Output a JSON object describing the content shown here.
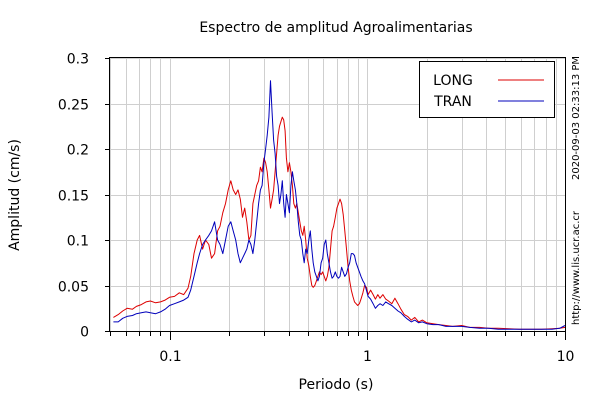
{
  "chart_data": {
    "type": "line",
    "title": "Espectro de amplitud Agroalimentarias",
    "xlabel": "Periodo (s)",
    "ylabel": "Amplitud (cm/s)",
    "x_scale": "log",
    "xlim": [
      0.05,
      10
    ],
    "ylim": [
      0,
      0.3
    ],
    "grid": true,
    "legend_position": "top-right",
    "x_ticks": [
      {
        "value": 0.1,
        "label": "0.1"
      },
      {
        "value": 1,
        "label": "1"
      },
      {
        "value": 10,
        "label": "10"
      }
    ],
    "y_ticks": [
      {
        "value": 0,
        "label": "0"
      },
      {
        "value": 0.05,
        "label": "0.05"
      },
      {
        "value": 0.1,
        "label": "0.1"
      },
      {
        "value": 0.15,
        "label": "0.15"
      },
      {
        "value": 0.2,
        "label": "0.2"
      },
      {
        "value": 0.25,
        "label": "0.25"
      },
      {
        "value": 0.3,
        "label": "0.3"
      }
    ],
    "series": [
      {
        "name": "LONG",
        "color": "#dd0000",
        "points": [
          [
            0.052,
            0.015
          ],
          [
            0.055,
            0.018
          ],
          [
            0.058,
            0.022
          ],
          [
            0.061,
            0.025
          ],
          [
            0.065,
            0.024
          ],
          [
            0.068,
            0.027
          ],
          [
            0.072,
            0.029
          ],
          [
            0.076,
            0.032
          ],
          [
            0.08,
            0.033
          ],
          [
            0.085,
            0.031
          ],
          [
            0.09,
            0.032
          ],
          [
            0.095,
            0.034
          ],
          [
            0.1,
            0.037
          ],
          [
            0.106,
            0.038
          ],
          [
            0.112,
            0.042
          ],
          [
            0.118,
            0.04
          ],
          [
            0.124,
            0.047
          ],
          [
            0.128,
            0.06
          ],
          [
            0.133,
            0.085
          ],
          [
            0.138,
            0.1
          ],
          [
            0.142,
            0.105
          ],
          [
            0.147,
            0.09
          ],
          [
            0.152,
            0.1
          ],
          [
            0.158,
            0.095
          ],
          [
            0.163,
            0.08
          ],
          [
            0.169,
            0.085
          ],
          [
            0.175,
            0.11
          ],
          [
            0.18,
            0.115
          ],
          [
            0.186,
            0.13
          ],
          [
            0.192,
            0.14
          ],
          [
            0.198,
            0.155
          ],
          [
            0.204,
            0.165
          ],
          [
            0.21,
            0.155
          ],
          [
            0.216,
            0.15
          ],
          [
            0.222,
            0.155
          ],
          [
            0.228,
            0.145
          ],
          [
            0.234,
            0.125
          ],
          [
            0.24,
            0.135
          ],
          [
            0.246,
            0.12
          ],
          [
            0.252,
            0.1
          ],
          [
            0.258,
            0.105
          ],
          [
            0.264,
            0.14
          ],
          [
            0.27,
            0.15
          ],
          [
            0.276,
            0.16
          ],
          [
            0.282,
            0.165
          ],
          [
            0.288,
            0.18
          ],
          [
            0.294,
            0.175
          ],
          [
            0.3,
            0.19
          ],
          [
            0.306,
            0.185
          ],
          [
            0.312,
            0.175
          ],
          [
            0.318,
            0.155
          ],
          [
            0.324,
            0.135
          ],
          [
            0.33,
            0.145
          ],
          [
            0.336,
            0.155
          ],
          [
            0.342,
            0.175
          ],
          [
            0.348,
            0.195
          ],
          [
            0.354,
            0.215
          ],
          [
            0.36,
            0.225
          ],
          [
            0.366,
            0.23
          ],
          [
            0.372,
            0.235
          ],
          [
            0.378,
            0.232
          ],
          [
            0.384,
            0.22
          ],
          [
            0.39,
            0.19
          ],
          [
            0.397,
            0.175
          ],
          [
            0.404,
            0.185
          ],
          [
            0.411,
            0.175
          ],
          [
            0.418,
            0.16
          ],
          [
            0.425,
            0.14
          ],
          [
            0.433,
            0.135
          ],
          [
            0.44,
            0.14
          ],
          [
            0.448,
            0.13
          ],
          [
            0.456,
            0.12
          ],
          [
            0.464,
            0.11
          ],
          [
            0.472,
            0.105
          ],
          [
            0.48,
            0.115
          ],
          [
            0.488,
            0.1
          ],
          [
            0.497,
            0.08
          ],
          [
            0.506,
            0.072
          ],
          [
            0.515,
            0.06
          ],
          [
            0.524,
            0.05
          ],
          [
            0.533,
            0.048
          ],
          [
            0.543,
            0.05
          ],
          [
            0.553,
            0.055
          ],
          [
            0.563,
            0.06
          ],
          [
            0.573,
            0.065
          ],
          [
            0.584,
            0.062
          ],
          [
            0.595,
            0.065
          ],
          [
            0.606,
            0.06
          ],
          [
            0.617,
            0.055
          ],
          [
            0.628,
            0.06
          ],
          [
            0.64,
            0.07
          ],
          [
            0.652,
            0.09
          ],
          [
            0.664,
            0.11
          ],
          [
            0.676,
            0.115
          ],
          [
            0.689,
            0.125
          ],
          [
            0.702,
            0.135
          ],
          [
            0.715,
            0.14
          ],
          [
            0.728,
            0.145
          ],
          [
            0.742,
            0.14
          ],
          [
            0.756,
            0.128
          ],
          [
            0.77,
            0.11
          ],
          [
            0.785,
            0.09
          ],
          [
            0.8,
            0.07
          ],
          [
            0.815,
            0.055
          ],
          [
            0.83,
            0.045
          ],
          [
            0.846,
            0.038
          ],
          [
            0.862,
            0.032
          ],
          [
            0.878,
            0.03
          ],
          [
            0.895,
            0.028
          ],
          [
            0.912,
            0.03
          ],
          [
            0.93,
            0.035
          ],
          [
            0.95,
            0.042
          ],
          [
            0.97,
            0.05
          ],
          [
            0.99,
            0.048
          ],
          [
            1.01,
            0.04
          ],
          [
            1.04,
            0.045
          ],
          [
            1.07,
            0.04
          ],
          [
            1.1,
            0.035
          ],
          [
            1.13,
            0.04
          ],
          [
            1.16,
            0.036
          ],
          [
            1.2,
            0.04
          ],
          [
            1.24,
            0.035
          ],
          [
            1.28,
            0.033
          ],
          [
            1.33,
            0.03
          ],
          [
            1.38,
            0.036
          ],
          [
            1.43,
            0.03
          ],
          [
            1.48,
            0.024
          ],
          [
            1.54,
            0.018
          ],
          [
            1.6,
            0.016
          ],
          [
            1.67,
            0.012
          ],
          [
            1.74,
            0.015
          ],
          [
            1.82,
            0.01
          ],
          [
            1.9,
            0.012
          ],
          [
            2.0,
            0.009
          ],
          [
            2.15,
            0.008
          ],
          [
            2.3,
            0.007
          ],
          [
            2.5,
            0.006
          ],
          [
            2.7,
            0.005
          ],
          [
            3.0,
            0.006
          ],
          [
            3.3,
            0.004
          ],
          [
            3.7,
            0.004
          ],
          [
            4.1,
            0.003
          ],
          [
            4.6,
            0.003
          ],
          [
            5.2,
            0.0025
          ],
          [
            5.9,
            0.002
          ],
          [
            6.7,
            0.002
          ],
          [
            7.6,
            0.002
          ],
          [
            8.6,
            0.0025
          ],
          [
            9.4,
            0.003
          ],
          [
            10,
            0.004
          ]
        ]
      },
      {
        "name": "TRAN",
        "color": "#0000bb",
        "points": [
          [
            0.052,
            0.01
          ],
          [
            0.055,
            0.01
          ],
          [
            0.058,
            0.014
          ],
          [
            0.061,
            0.016
          ],
          [
            0.065,
            0.017
          ],
          [
            0.068,
            0.019
          ],
          [
            0.072,
            0.02
          ],
          [
            0.076,
            0.021
          ],
          [
            0.08,
            0.02
          ],
          [
            0.085,
            0.019
          ],
          [
            0.09,
            0.021
          ],
          [
            0.095,
            0.024
          ],
          [
            0.1,
            0.028
          ],
          [
            0.106,
            0.03
          ],
          [
            0.112,
            0.032
          ],
          [
            0.118,
            0.034
          ],
          [
            0.124,
            0.037
          ],
          [
            0.128,
            0.045
          ],
          [
            0.133,
            0.06
          ],
          [
            0.138,
            0.075
          ],
          [
            0.142,
            0.085
          ],
          [
            0.147,
            0.095
          ],
          [
            0.152,
            0.1
          ],
          [
            0.158,
            0.105
          ],
          [
            0.163,
            0.11
          ],
          [
            0.169,
            0.12
          ],
          [
            0.175,
            0.1
          ],
          [
            0.18,
            0.095
          ],
          [
            0.186,
            0.085
          ],
          [
            0.192,
            0.1
          ],
          [
            0.198,
            0.115
          ],
          [
            0.204,
            0.12
          ],
          [
            0.21,
            0.11
          ],
          [
            0.216,
            0.1
          ],
          [
            0.222,
            0.085
          ],
          [
            0.228,
            0.075
          ],
          [
            0.234,
            0.08
          ],
          [
            0.24,
            0.085
          ],
          [
            0.246,
            0.09
          ],
          [
            0.252,
            0.1
          ],
          [
            0.258,
            0.095
          ],
          [
            0.264,
            0.085
          ],
          [
            0.27,
            0.1
          ],
          [
            0.276,
            0.12
          ],
          [
            0.282,
            0.14
          ],
          [
            0.288,
            0.155
          ],
          [
            0.294,
            0.16
          ],
          [
            0.3,
            0.185
          ],
          [
            0.306,
            0.2
          ],
          [
            0.312,
            0.215
          ],
          [
            0.318,
            0.235
          ],
          [
            0.324,
            0.275
          ],
          [
            0.33,
            0.24
          ],
          [
            0.336,
            0.21
          ],
          [
            0.342,
            0.195
          ],
          [
            0.348,
            0.17
          ],
          [
            0.354,
            0.16
          ],
          [
            0.36,
            0.14
          ],
          [
            0.366,
            0.15
          ],
          [
            0.372,
            0.165
          ],
          [
            0.378,
            0.14
          ],
          [
            0.384,
            0.125
          ],
          [
            0.39,
            0.15
          ],
          [
            0.397,
            0.14
          ],
          [
            0.404,
            0.13
          ],
          [
            0.411,
            0.16
          ],
          [
            0.418,
            0.175
          ],
          [
            0.425,
            0.165
          ],
          [
            0.433,
            0.155
          ],
          [
            0.44,
            0.14
          ],
          [
            0.448,
            0.12
          ],
          [
            0.456,
            0.105
          ],
          [
            0.464,
            0.1
          ],
          [
            0.472,
            0.085
          ],
          [
            0.48,
            0.075
          ],
          [
            0.488,
            0.09
          ],
          [
            0.497,
            0.085
          ],
          [
            0.506,
            0.1
          ],
          [
            0.515,
            0.11
          ],
          [
            0.524,
            0.09
          ],
          [
            0.533,
            0.075
          ],
          [
            0.543,
            0.065
          ],
          [
            0.553,
            0.06
          ],
          [
            0.563,
            0.055
          ],
          [
            0.573,
            0.06
          ],
          [
            0.584,
            0.075
          ],
          [
            0.595,
            0.08
          ],
          [
            0.606,
            0.095
          ],
          [
            0.617,
            0.1
          ],
          [
            0.628,
            0.085
          ],
          [
            0.64,
            0.075
          ],
          [
            0.652,
            0.065
          ],
          [
            0.664,
            0.058
          ],
          [
            0.676,
            0.06
          ],
          [
            0.689,
            0.065
          ],
          [
            0.702,
            0.06
          ],
          [
            0.715,
            0.058
          ],
          [
            0.728,
            0.06
          ],
          [
            0.742,
            0.07
          ],
          [
            0.756,
            0.065
          ],
          [
            0.77,
            0.06
          ],
          [
            0.785,
            0.063
          ],
          [
            0.8,
            0.07
          ],
          [
            0.815,
            0.075
          ],
          [
            0.83,
            0.085
          ],
          [
            0.846,
            0.085
          ],
          [
            0.862,
            0.083
          ],
          [
            0.878,
            0.075
          ],
          [
            0.895,
            0.07
          ],
          [
            0.912,
            0.065
          ],
          [
            0.93,
            0.06
          ],
          [
            0.95,
            0.055
          ],
          [
            0.97,
            0.052
          ],
          [
            0.99,
            0.045
          ],
          [
            1.01,
            0.038
          ],
          [
            1.04,
            0.035
          ],
          [
            1.07,
            0.03
          ],
          [
            1.1,
            0.025
          ],
          [
            1.13,
            0.028
          ],
          [
            1.16,
            0.03
          ],
          [
            1.2,
            0.028
          ],
          [
            1.24,
            0.032
          ],
          [
            1.28,
            0.03
          ],
          [
            1.33,
            0.028
          ],
          [
            1.38,
            0.025
          ],
          [
            1.43,
            0.022
          ],
          [
            1.48,
            0.02
          ],
          [
            1.54,
            0.016
          ],
          [
            1.6,
            0.013
          ],
          [
            1.67,
            0.01
          ],
          [
            1.74,
            0.012
          ],
          [
            1.82,
            0.009
          ],
          [
            1.9,
            0.01
          ],
          [
            2.0,
            0.008
          ],
          [
            2.15,
            0.007
          ],
          [
            2.3,
            0.007
          ],
          [
            2.5,
            0.005
          ],
          [
            2.7,
            0.005
          ],
          [
            3.0,
            0.005
          ],
          [
            3.3,
            0.004
          ],
          [
            3.7,
            0.003
          ],
          [
            4.1,
            0.003
          ],
          [
            4.6,
            0.002
          ],
          [
            5.2,
            0.002
          ],
          [
            5.9,
            0.002
          ],
          [
            6.7,
            0.002
          ],
          [
            7.6,
            0.002
          ],
          [
            8.6,
            0.002
          ],
          [
            9.4,
            0.003
          ],
          [
            10,
            0.006
          ]
        ]
      }
    ]
  },
  "side_text": {
    "timestamp": "2020-09-03 02:33:13 PM",
    "url": "http://www.lis.ucr.ac.cr"
  }
}
